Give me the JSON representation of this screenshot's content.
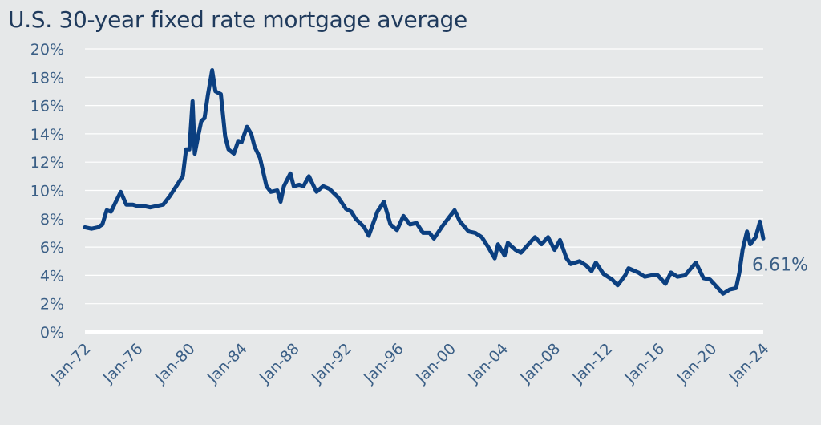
{
  "chart_data": {
    "type": "line",
    "title": "U.S. 30-year fixed rate mortgage average",
    "xlabel": "",
    "ylabel": "",
    "ylim": [
      0,
      20
    ],
    "xlim": [
      "1972-01",
      "2024-01"
    ],
    "yticks": [
      "0%",
      "2%",
      "4%",
      "6%",
      "8%",
      "10%",
      "12%",
      "14%",
      "16%",
      "18%",
      "20%"
    ],
    "xticks": [
      "Jan-72",
      "Jan-76",
      "Jan-80",
      "Jan-84",
      "Jan-88",
      "Jan-92",
      "Jan-96",
      "Jan-00",
      "Jan-04",
      "Jan-08",
      "Jan-12",
      "Jan-16",
      "Jan-20",
      "Jan-24"
    ],
    "grid": true,
    "legend": "none",
    "end_label": "6.61%",
    "series": [
      {
        "color": "#0b3f80",
        "x": [
          "1972-01",
          "1972-07",
          "1973-01",
          "1973-05",
          "1973-09",
          "1974-01",
          "1974-06",
          "1974-10",
          "1975-03",
          "1975-09",
          "1976-01",
          "1976-07",
          "1977-01",
          "1977-07",
          "1978-01",
          "1978-07",
          "1979-01",
          "1979-07",
          "1979-10",
          "1980-01",
          "1980-04",
          "1980-06",
          "1980-09",
          "1980-12",
          "1981-03",
          "1981-06",
          "1981-10",
          "1982-01",
          "1982-06",
          "1982-10",
          "1983-01",
          "1983-06",
          "1983-10",
          "1984-01",
          "1984-06",
          "1984-10",
          "1985-01",
          "1985-06",
          "1985-12",
          "1986-04",
          "1986-10",
          "1987-01",
          "1987-04",
          "1987-10",
          "1988-01",
          "1988-06",
          "1988-10",
          "1989-03",
          "1989-10",
          "1990-04",
          "1990-10",
          "1991-06",
          "1992-01",
          "1992-06",
          "1992-10",
          "1993-06",
          "1993-10",
          "1994-06",
          "1994-12",
          "1995-06",
          "1995-12",
          "1996-06",
          "1996-12",
          "1997-06",
          "1997-12",
          "1998-06",
          "1998-10",
          "1999-06",
          "2000-01",
          "2000-05",
          "2000-10",
          "2001-06",
          "2001-12",
          "2002-06",
          "2002-12",
          "2003-06",
          "2003-09",
          "2004-03",
          "2004-06",
          "2005-01",
          "2005-06",
          "2006-01",
          "2006-07",
          "2007-01",
          "2007-07",
          "2008-01",
          "2008-06",
          "2008-12",
          "2009-04",
          "2009-12",
          "2010-06",
          "2010-11",
          "2011-03",
          "2011-10",
          "2012-06",
          "2012-11",
          "2013-06",
          "2013-09",
          "2014-06",
          "2014-12",
          "2015-06",
          "2015-12",
          "2016-07",
          "2016-12",
          "2017-06",
          "2018-01",
          "2018-11",
          "2019-06",
          "2019-12",
          "2020-06",
          "2020-12",
          "2021-06",
          "2021-12",
          "2022-03",
          "2022-06",
          "2022-10",
          "2023-01",
          "2023-06",
          "2023-10",
          "2024-01"
        ],
        "y": [
          7.4,
          7.3,
          7.4,
          7.6,
          8.6,
          8.5,
          9.3,
          9.9,
          9.0,
          9.0,
          8.9,
          8.9,
          8.8,
          8.9,
          9.0,
          9.6,
          10.3,
          11.0,
          12.9,
          12.9,
          16.3,
          12.6,
          13.8,
          14.9,
          15.1,
          16.7,
          18.5,
          17.0,
          16.8,
          13.8,
          12.9,
          12.6,
          13.5,
          13.4,
          14.5,
          14.0,
          13.1,
          12.3,
          10.3,
          9.9,
          10.0,
          9.2,
          10.3,
          11.2,
          10.3,
          10.4,
          10.3,
          11.0,
          9.9,
          10.3,
          10.1,
          9.5,
          8.7,
          8.5,
          8.0,
          7.4,
          6.8,
          8.5,
          9.2,
          7.6,
          7.2,
          8.2,
          7.6,
          7.7,
          7.0,
          7.0,
          6.6,
          7.5,
          8.2,
          8.6,
          7.8,
          7.1,
          7.0,
          6.7,
          6.0,
          5.2,
          6.2,
          5.4,
          6.3,
          5.8,
          5.6,
          6.2,
          6.7,
          6.2,
          6.7,
          5.8,
          6.5,
          5.2,
          4.8,
          5.0,
          4.7,
          4.3,
          4.9,
          4.1,
          3.7,
          3.3,
          4.0,
          4.5,
          4.2,
          3.9,
          4.0,
          4.0,
          3.4,
          4.2,
          3.9,
          4.0,
          4.9,
          3.8,
          3.7,
          3.2,
          2.7,
          3.0,
          3.1,
          4.2,
          5.8,
          7.1,
          6.2,
          6.7,
          7.8,
          6.61
        ]
      }
    ]
  }
}
